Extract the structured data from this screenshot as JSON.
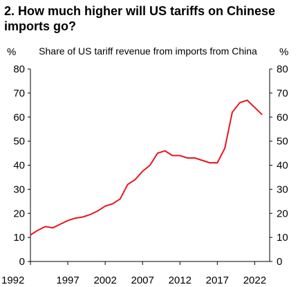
{
  "chart_data": {
    "type": "line",
    "title": "2. How much higher will US tariffs on Chinese imports go?",
    "subtitle": "Share of US tariff revenue from imports from China",
    "y_unit_left": "%",
    "y_unit_right": "%",
    "ylim": [
      0,
      80
    ],
    "y_ticks": [
      0,
      10,
      20,
      30,
      40,
      50,
      60,
      70,
      80
    ],
    "xlim": [
      1992,
      2024
    ],
    "x_ticks": [
      1992,
      1997,
      2002,
      2007,
      2012,
      2017,
      2022
    ],
    "grid": false,
    "line_color": "#e8141b",
    "series": [
      {
        "x": [
          1992,
          1993,
          1994,
          1995,
          1996,
          1997,
          1998,
          1999,
          2000,
          2001,
          2002,
          2003,
          2004,
          2005,
          2006,
          2007,
          2008,
          2009,
          2010,
          2011,
          2012,
          2013,
          2014,
          2015,
          2016,
          2017,
          2018,
          2019,
          2020,
          2021,
          2022,
          2023
        ],
        "values": [
          11,
          13,
          14.5,
          14,
          15.5,
          17,
          18,
          18.5,
          19.5,
          21,
          23,
          24,
          26,
          32,
          34,
          37.5,
          40,
          45,
          46,
          44,
          44,
          43,
          43,
          42,
          41,
          41,
          47,
          62,
          66,
          67,
          64,
          61
        ]
      }
    ]
  }
}
